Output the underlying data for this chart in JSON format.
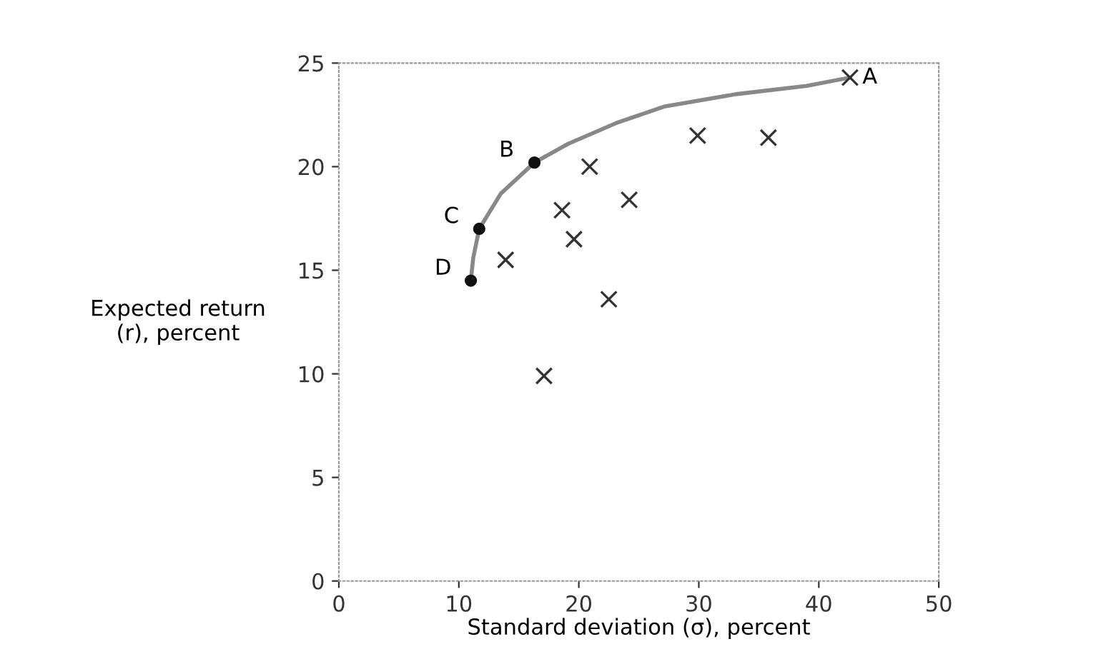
{
  "chart_data": {
    "type": "scatter",
    "xlabel": "Standard deviation (σ), percent",
    "ylabel": "Expected return\n(r), percent",
    "xlim": [
      0,
      50
    ],
    "ylim": [
      0,
      25
    ],
    "xticks": [
      0,
      10,
      20,
      30,
      40,
      50
    ],
    "yticks": [
      0,
      5,
      10,
      15,
      20,
      25
    ],
    "grid": false,
    "legend": false,
    "series": [
      {
        "marker": "cross",
        "color": "#333333",
        "x": [
          29.9,
          35.8,
          20.9,
          24.2,
          18.6,
          19.6,
          13.9,
          22.5,
          17.1,
          42.6
        ],
        "values": [
          21.5,
          21.4,
          20.0,
          18.4,
          17.9,
          16.5,
          15.5,
          13.6,
          9.9,
          24.3
        ]
      },
      {
        "type": "line",
        "marker": "none",
        "line_style": "solid",
        "color": "#888888",
        "x": [
          11.0,
          11.2,
          11.7,
          13.5,
          16.3,
          19.1,
          23.1,
          27.1,
          33.1,
          39.0,
          42.6
        ],
        "values": [
          14.5,
          15.6,
          17.0,
          18.7,
          20.2,
          21.1,
          22.1,
          22.9,
          23.5,
          23.9,
          24.3
        ]
      },
      {
        "marker": "circle",
        "color": "#111111",
        "x": [
          16.3,
          11.7,
          11.0
        ],
        "values": [
          20.2,
          17.0,
          14.5
        ]
      }
    ],
    "annotations": [
      {
        "text": "A",
        "x": 42.6,
        "y": 24.3
      },
      {
        "text": "B",
        "x": 16.3,
        "y": 20.2
      },
      {
        "text": "C",
        "x": 11.7,
        "y": 17.0
      },
      {
        "text": "D",
        "x": 11.0,
        "y": 14.5
      }
    ]
  }
}
